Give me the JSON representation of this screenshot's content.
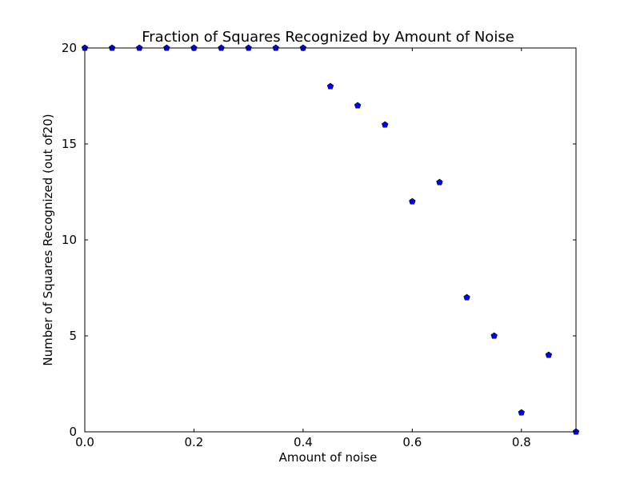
{
  "chart_data": {
    "type": "scatter",
    "title": "Fraction of Squares Recognized by Amount of Noise",
    "xlabel": "Amount of noise",
    "ylabel": "Number of Squares Recognized (out of20)",
    "xlim": [
      0.0,
      0.9
    ],
    "ylim": [
      0,
      20
    ],
    "xticks": [
      0.0,
      0.2,
      0.4,
      0.6,
      0.8
    ],
    "xtick_labels": [
      "0.0",
      "0.2",
      "0.4",
      "0.6",
      "0.8"
    ],
    "yticks": [
      0,
      5,
      10,
      15,
      20
    ],
    "ytick_labels": [
      "0",
      "5",
      "10",
      "15",
      "20"
    ],
    "grid": false,
    "marker": "pentagon",
    "marker_color": "#0000ff",
    "series": [
      {
        "x": [
          0.0,
          0.05,
          0.1,
          0.15,
          0.2,
          0.25,
          0.3,
          0.35,
          0.4,
          0.45,
          0.5,
          0.55,
          0.6,
          0.65,
          0.7,
          0.75,
          0.8,
          0.85,
          0.9
        ],
        "y": [
          20,
          20,
          20,
          20,
          20,
          20,
          20,
          20,
          20,
          18,
          17,
          16,
          12,
          13,
          7,
          5,
          1,
          4,
          0
        ]
      }
    ]
  }
}
